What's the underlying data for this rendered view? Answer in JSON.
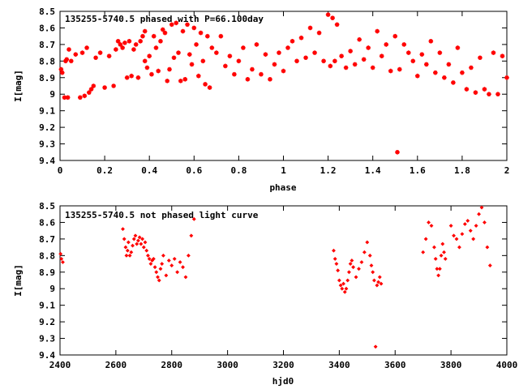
{
  "chart_data": [
    {
      "type": "scatter",
      "title": "135255-5740.5 phased with P=66.100day",
      "xlabel": "phase",
      "ylabel": "I[mag]",
      "xlim": [
        0,
        2
      ],
      "ylim": [
        8.5,
        9.4
      ],
      "y_inverted": true,
      "grid": false,
      "xticks": [
        "0",
        "0.2",
        "0.4",
        "0.6",
        "0.8",
        "1",
        "1.2",
        "1.4",
        "1.6",
        "1.8",
        "2"
      ],
      "yticks": [
        "8.5",
        "8.6",
        "8.7",
        "8.8",
        "8.9",
        "9",
        "9.1",
        "9.2",
        "9.3",
        "9.4"
      ],
      "marker_color": "#ff0000",
      "series": [
        {
          "x": [
            0.005,
            0.01,
            0.02,
            0.025,
            0.03,
            0.035,
            0.04,
            0.05,
            0.07,
            0.09,
            0.1,
            0.11,
            0.12,
            0.13,
            0.14,
            0.15,
            0.16,
            0.18,
            0.2,
            0.22,
            0.24,
            0.25,
            0.26,
            0.27,
            0.28,
            0.29,
            0.3,
            0.31,
            0.32,
            0.33,
            0.34,
            0.35,
            0.36,
            0.37,
            0.38,
            0.38,
            0.39,
            0.4,
            0.41,
            0.42,
            0.43,
            0.44,
            0.45,
            0.46,
            0.47,
            0.48,
            0.49,
            0.5,
            0.51,
            0.52,
            0.53,
            0.54,
            0.55,
            0.56,
            0.57,
            0.58,
            0.59,
            0.6,
            0.61,
            0.62,
            0.63,
            0.64,
            0.65,
            0.66,
            0.67,
            0.68,
            0.7,
            0.72,
            0.74,
            0.76,
            0.78,
            0.8,
            0.82,
            0.84,
            0.86,
            0.88,
            0.9,
            0.92,
            0.94,
            0.96,
            0.98,
            1.0,
            1.02,
            1.04,
            1.06,
            1.08,
            1.1,
            1.12,
            1.14,
            1.16,
            1.18,
            1.2,
            1.21,
            1.22,
            1.23,
            1.24,
            1.26,
            1.28,
            1.3,
            1.32,
            1.34,
            1.36,
            1.38,
            1.4,
            1.42,
            1.44,
            1.46,
            1.48,
            1.5,
            1.51,
            1.52,
            1.54,
            1.56,
            1.58,
            1.6,
            1.62,
            1.64,
            1.66,
            1.68,
            1.7,
            1.72,
            1.74,
            1.76,
            1.78,
            1.8,
            1.82,
            1.84,
            1.86,
            1.88,
            1.9,
            1.92,
            1.94,
            1.96,
            1.98,
            2.0
          ],
          "y": [
            8.85,
            8.87,
            9.02,
            8.8,
            8.79,
            9.02,
            8.73,
            8.8,
            8.76,
            9.02,
            8.75,
            9.01,
            8.72,
            8.99,
            8.97,
            8.95,
            8.78,
            8.75,
            8.96,
            8.77,
            8.95,
            8.73,
            8.68,
            8.7,
            8.72,
            8.69,
            8.9,
            8.68,
            8.89,
            8.73,
            8.7,
            8.9,
            8.68,
            8.65,
            8.8,
            8.62,
            8.84,
            8.77,
            8.88,
            8.65,
            8.72,
            8.86,
            8.68,
            8.61,
            8.63,
            8.92,
            8.85,
            8.58,
            8.78,
            8.57,
            8.75,
            8.92,
            8.62,
            8.91,
            8.58,
            8.76,
            8.82,
            8.6,
            8.7,
            8.89,
            8.63,
            8.8,
            8.94,
            8.65,
            8.96,
            8.72,
            8.75,
            8.65,
            8.83,
            8.77,
            8.88,
            8.8,
            8.72,
            8.91,
            8.85,
            8.7,
            8.88,
            8.76,
            8.91,
            8.82,
            8.75,
            8.86,
            8.72,
            8.68,
            8.8,
            8.66,
            8.78,
            8.6,
            8.75,
            8.63,
            8.8,
            8.52,
            8.83,
            8.54,
            8.8,
            8.58,
            8.77,
            8.84,
            8.74,
            8.82,
            8.67,
            8.79,
            8.72,
            8.84,
            8.62,
            8.77,
            8.7,
            8.86,
            8.65,
            9.35,
            8.85,
            8.7,
            8.75,
            8.8,
            8.89,
            8.76,
            8.82,
            8.68,
            8.87,
            8.75,
            8.9,
            8.82,
            8.93,
            8.72,
            8.87,
            8.97,
            8.84,
            8.99,
            8.78,
            8.97,
            9.0,
            8.75,
            9.0,
            8.77,
            8.9
          ]
        }
      ]
    },
    {
      "type": "scatter",
      "title": "135255-5740.5 not phased light curve",
      "xlabel": "hjd0",
      "ylabel": "I[mag]",
      "xlim": [
        2400,
        4000
      ],
      "ylim": [
        8.5,
        9.4
      ],
      "y_inverted": true,
      "grid": false,
      "xticks": [
        "2400",
        "2600",
        "2800",
        "3000",
        "3200",
        "3400",
        "3600",
        "3800",
        "4000"
      ],
      "yticks": [
        "8.5",
        "8.6",
        "8.7",
        "8.8",
        "8.9",
        "9",
        "9.1",
        "9.2",
        "9.3",
        "9.4"
      ],
      "marker_color": "#ff0000",
      "series": [
        {
          "x": [
            2402,
            2405,
            2410,
            2625,
            2630,
            2635,
            2638,
            2642,
            2645,
            2650,
            2655,
            2660,
            2665,
            2670,
            2675,
            2680,
            2685,
            2690,
            2695,
            2700,
            2705,
            2710,
            2715,
            2720,
            2725,
            2730,
            2735,
            2740,
            2745,
            2750,
            2755,
            2760,
            2765,
            2770,
            2780,
            2790,
            2800,
            2810,
            2820,
            2830,
            2840,
            2850,
            2860,
            2870,
            2880,
            3380,
            3385,
            3390,
            3395,
            3400,
            3405,
            3410,
            3415,
            3420,
            3425,
            3430,
            3435,
            3440,
            3445,
            3450,
            3460,
            3470,
            3480,
            3490,
            3500,
            3510,
            3515,
            3520,
            3525,
            3530,
            3535,
            3540,
            3545,
            3550,
            3700,
            3710,
            3720,
            3730,
            3740,
            3745,
            3750,
            3755,
            3760,
            3765,
            3770,
            3775,
            3780,
            3800,
            3810,
            3820,
            3830,
            3840,
            3850,
            3860,
            3870,
            3880,
            3890,
            3900,
            3910,
            3920,
            3930,
            3940
          ],
          "y": [
            8.79,
            8.82,
            8.84,
            8.64,
            8.7,
            8.75,
            8.8,
            8.77,
            8.72,
            8.8,
            8.78,
            8.74,
            8.7,
            8.68,
            8.73,
            8.71,
            8.69,
            8.73,
            8.7,
            8.75,
            8.72,
            8.77,
            8.8,
            8.82,
            8.85,
            8.83,
            8.82,
            8.87,
            8.9,
            8.93,
            8.95,
            8.88,
            8.85,
            8.8,
            8.92,
            8.83,
            8.86,
            8.82,
            8.9,
            8.84,
            8.87,
            8.93,
            8.8,
            8.68,
            8.58,
            8.77,
            8.82,
            8.85,
            8.89,
            8.95,
            8.98,
            9.0,
            8.97,
            9.02,
            9.0,
            8.95,
            8.9,
            8.85,
            8.83,
            8.87,
            8.93,
            8.88,
            8.84,
            8.78,
            8.72,
            8.8,
            8.86,
            8.9,
            8.95,
            9.35,
            8.98,
            8.96,
            8.93,
            8.97,
            8.78,
            8.7,
            8.6,
            8.62,
            8.75,
            8.82,
            8.88,
            8.92,
            8.88,
            8.8,
            8.73,
            8.78,
            8.82,
            8.62,
            8.68,
            8.7,
            8.75,
            8.67,
            8.61,
            8.59,
            8.65,
            8.7,
            8.62,
            8.55,
            8.51,
            8.6,
            8.75,
            8.86
          ]
        }
      ]
    }
  ]
}
